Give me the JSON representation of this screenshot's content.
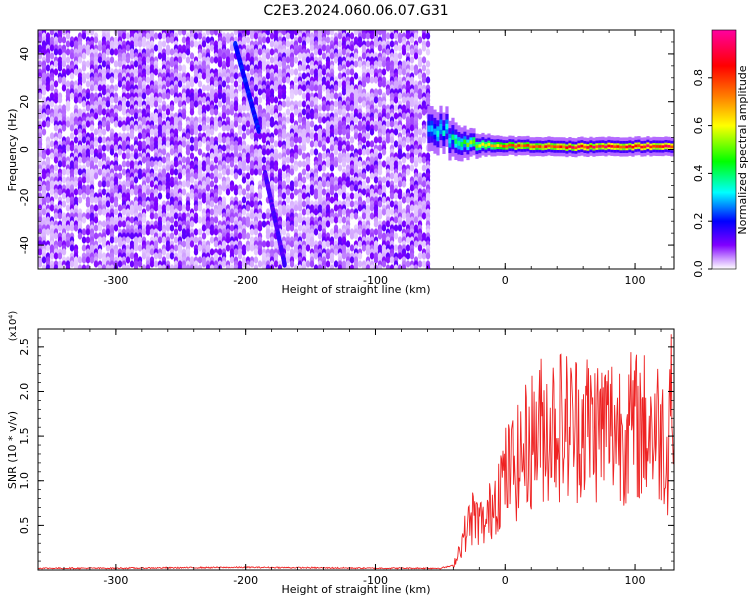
{
  "title": "C2E3.2024.060.06.07.G31",
  "chart_data": [
    {
      "type": "heatmap",
      "xlabel": "Height of straight line (km)",
      "ylabel": "Frequency (Hz)",
      "xlim": [
        -360,
        130
      ],
      "ylim": [
        -50,
        50
      ],
      "xticks": [
        -300,
        -200,
        -100,
        0,
        100
      ],
      "yticks": [
        -40,
        -20,
        0,
        20,
        40
      ],
      "colorbar": {
        "label": "Normalized spectral amplitude",
        "range": [
          0,
          1
        ],
        "ticks": [
          0.0,
          0.2,
          0.4,
          0.6,
          0.8
        ],
        "colors": [
          "#ffffff",
          "#c080ff",
          "#8000ff",
          "#0000ff",
          "#00ffff",
          "#00ff00",
          "#ffff00",
          "#ff8000",
          "#ff0000",
          "#ff00a0"
        ]
      },
      "noise_region": {
        "x": [
          -360,
          -60
        ],
        "y": [
          -50,
          50
        ],
        "level": [
          0.0,
          0.15
        ]
      },
      "streaks": [
        {
          "x": [
            -208,
            -190
          ],
          "y": [
            44,
            8
          ],
          "level": 0.18
        },
        {
          "x": [
            -185,
            -170
          ],
          "y": [
            -10,
            -48
          ],
          "level": 0.12
        }
      ],
      "signal_band": {
        "points": [
          {
            "x": -60,
            "center": 8,
            "halfwidth": 6,
            "level": 0.3
          },
          {
            "x": -40,
            "center": 6,
            "halfwidth": 5,
            "level": 0.4
          },
          {
            "x": -20,
            "center": 2,
            "halfwidth": 3,
            "level": 0.6
          },
          {
            "x": 0,
            "center": 1.5,
            "halfwidth": 2.5,
            "level": 0.8
          },
          {
            "x": 50,
            "center": 1,
            "halfwidth": 2.5,
            "level": 0.9
          },
          {
            "x": 130,
            "center": 1.5,
            "halfwidth": 2.5,
            "level": 0.95
          }
        ]
      }
    },
    {
      "type": "line",
      "xlabel": "Height of straight line (km)",
      "ylabel": "SNR (10 * v/v)",
      "yscale_label": "(x10⁴)",
      "xlim": [
        -360,
        130
      ],
      "ylim": [
        0,
        2.7
      ],
      "xticks": [
        -300,
        -200,
        -100,
        0,
        100
      ],
      "yticks": [
        0.5,
        1.0,
        1.5,
        2.0,
        2.5
      ],
      "color": "#ee2222",
      "series": [
        {
          "x": [
            -360,
            -300,
            -200,
            -100,
            -50,
            -40,
            -35,
            -30,
            -25,
            -20,
            -15,
            -10,
            -5,
            0,
            5,
            10,
            15,
            20,
            25,
            30,
            40,
            50,
            60,
            70,
            80,
            90,
            100,
            110,
            120,
            125,
            128,
            130
          ],
          "values": [
            0.02,
            0.02,
            0.03,
            0.02,
            0.02,
            0.05,
            0.25,
            0.45,
            0.6,
            0.55,
            0.5,
            0.75,
            0.95,
            1.05,
            1.15,
            1.2,
            1.35,
            1.45,
            1.55,
            1.6,
            1.65,
            1.6,
            1.65,
            1.6,
            1.62,
            1.6,
            1.6,
            1.6,
            1.55,
            1.3,
            2.4,
            1.0
          ]
        }
      ]
    }
  ]
}
